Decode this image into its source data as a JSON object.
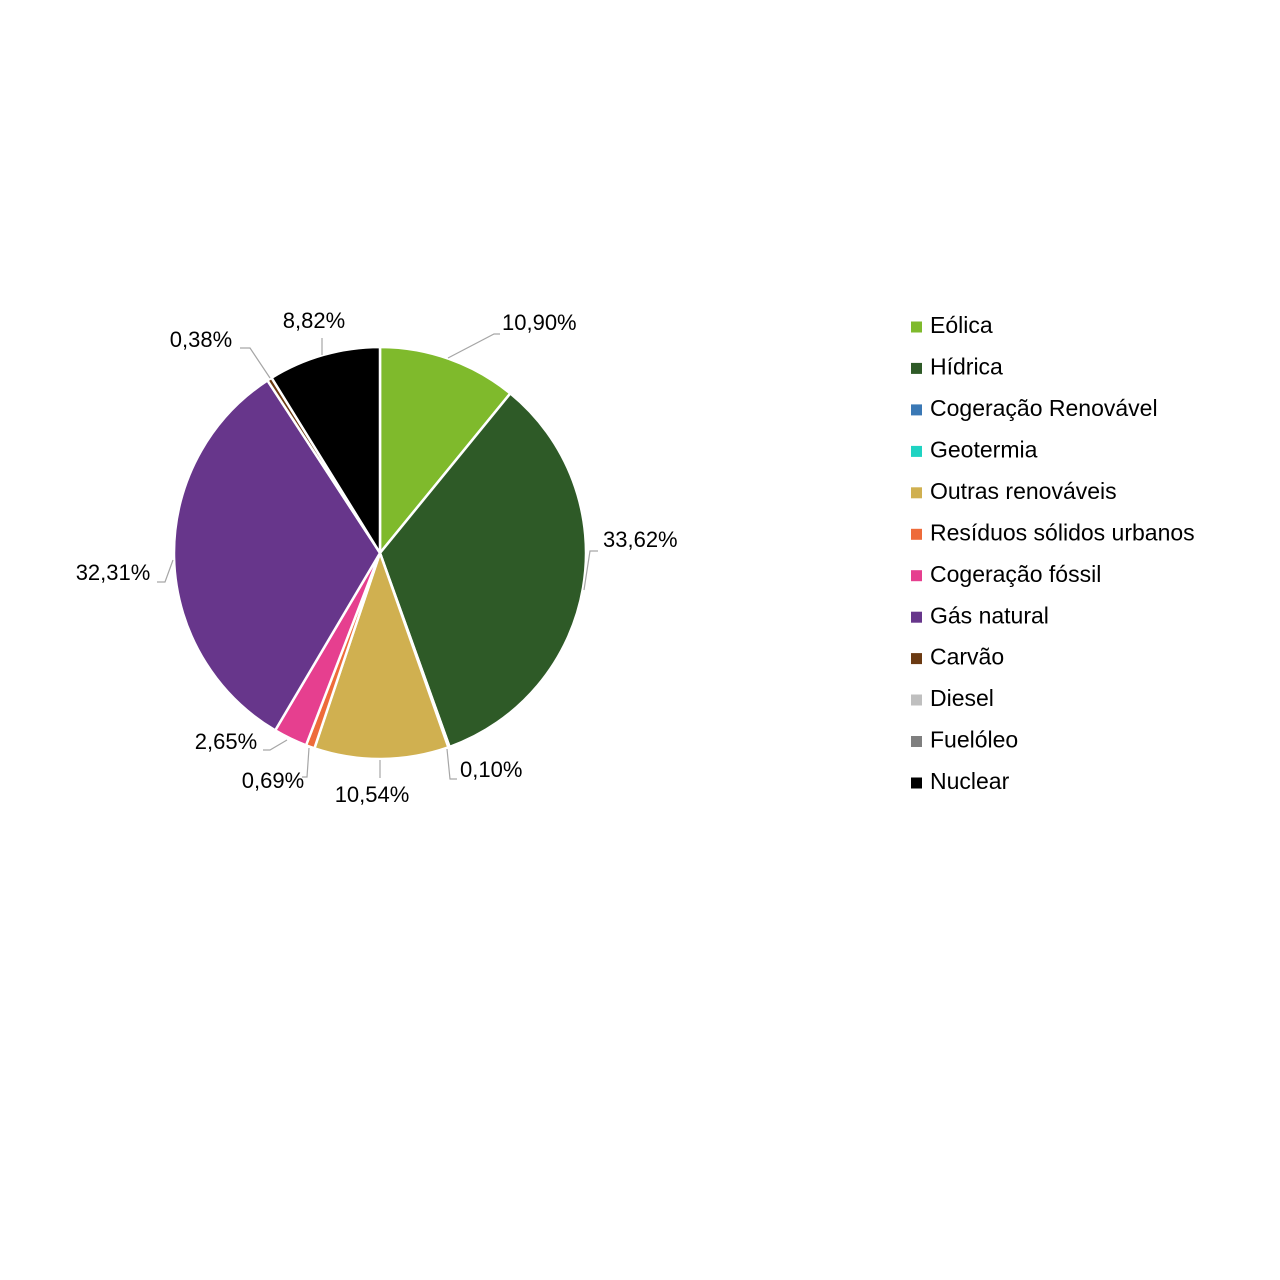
{
  "chart_data": {
    "type": "pie",
    "title": "",
    "legend_position": "right",
    "slices": [
      {
        "name": "Eólica",
        "value": 10.9,
        "label": "10,90%",
        "color": "#7fba2c"
      },
      {
        "name": "Hídrica",
        "value": 33.62,
        "label": "33,62%",
        "color": "#2e5a27"
      },
      {
        "name": "Cogeração Renovável",
        "value": 0.0,
        "label": "",
        "color": "#3a78b5"
      },
      {
        "name": "Geotermia",
        "value": 0.1,
        "label": "0,10%",
        "color": "#1fd3c2"
      },
      {
        "name": "Outras renováveis",
        "value": 10.54,
        "label": "10,54%",
        "color": "#d0b050"
      },
      {
        "name": "Resíduos sólidos urbanos",
        "value": 0.69,
        "label": "0,69%",
        "color": "#ee6b3a"
      },
      {
        "name": "Cogeração fóssil",
        "value": 2.65,
        "label": "2,65%",
        "color": "#e63f8f"
      },
      {
        "name": "Gás natural",
        "value": 32.31,
        "label": "32,31%",
        "color": "#67368b"
      },
      {
        "name": "Carvão",
        "value": 0.38,
        "label": "0,38%",
        "color": "#6b3a12"
      },
      {
        "name": "Diesel",
        "value": 0.0,
        "label": "",
        "color": "#bfbfbf"
      },
      {
        "name": "Fuelóleo",
        "value": 0.0,
        "label": "",
        "color": "#7f7f7f"
      },
      {
        "name": "Nuclear",
        "value": 8.82,
        "label": "8,82%",
        "color": "#000000"
      }
    ]
  }
}
